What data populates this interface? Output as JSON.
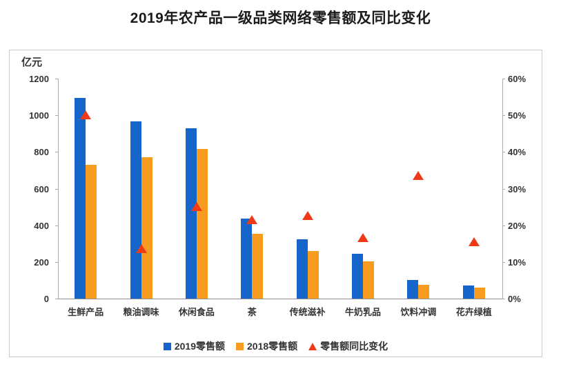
{
  "title": "2019年农产品一级品类网络零售额及同比变化",
  "chart_data": {
    "type": "bar",
    "title": "2019年农产品一级品类网络零售额及同比变化",
    "categories": [
      "生鲜产品",
      "粮油调味",
      "休闲食品",
      "茶",
      "传统滋补",
      "牛奶乳品",
      "饮料冲调",
      "花卉绿植"
    ],
    "series": [
      {
        "name": "2019零售额",
        "type": "bar",
        "color": "#1565cb",
        "axis": "left",
        "values": [
          1095,
          965,
          930,
          435,
          325,
          245,
          100,
          72
        ]
      },
      {
        "name": "2018零售额",
        "type": "bar",
        "color": "#f89c20",
        "axis": "left",
        "values": [
          730,
          770,
          815,
          355,
          260,
          205,
          75,
          62
        ]
      },
      {
        "name": "零售额同比变化",
        "type": "triangle-marker",
        "color": "#ee3a17",
        "axis": "right",
        "values_percent": [
          50,
          13.5,
          25,
          21.5,
          22.5,
          16.5,
          33.5,
          15.5
        ]
      }
    ],
    "left_axis": {
      "unit": "亿元",
      "min": 0,
      "max": 1200,
      "step": 200,
      "ticks": [
        "0",
        "200",
        "400",
        "600",
        "800",
        "1000",
        "1200"
      ]
    },
    "right_axis": {
      "min": 0,
      "max": 60,
      "step": 10,
      "ticks": [
        "0%",
        "10%",
        "20%",
        "30%",
        "40%",
        "50%",
        "60%"
      ]
    },
    "grid": false,
    "legend_position": "bottom"
  }
}
